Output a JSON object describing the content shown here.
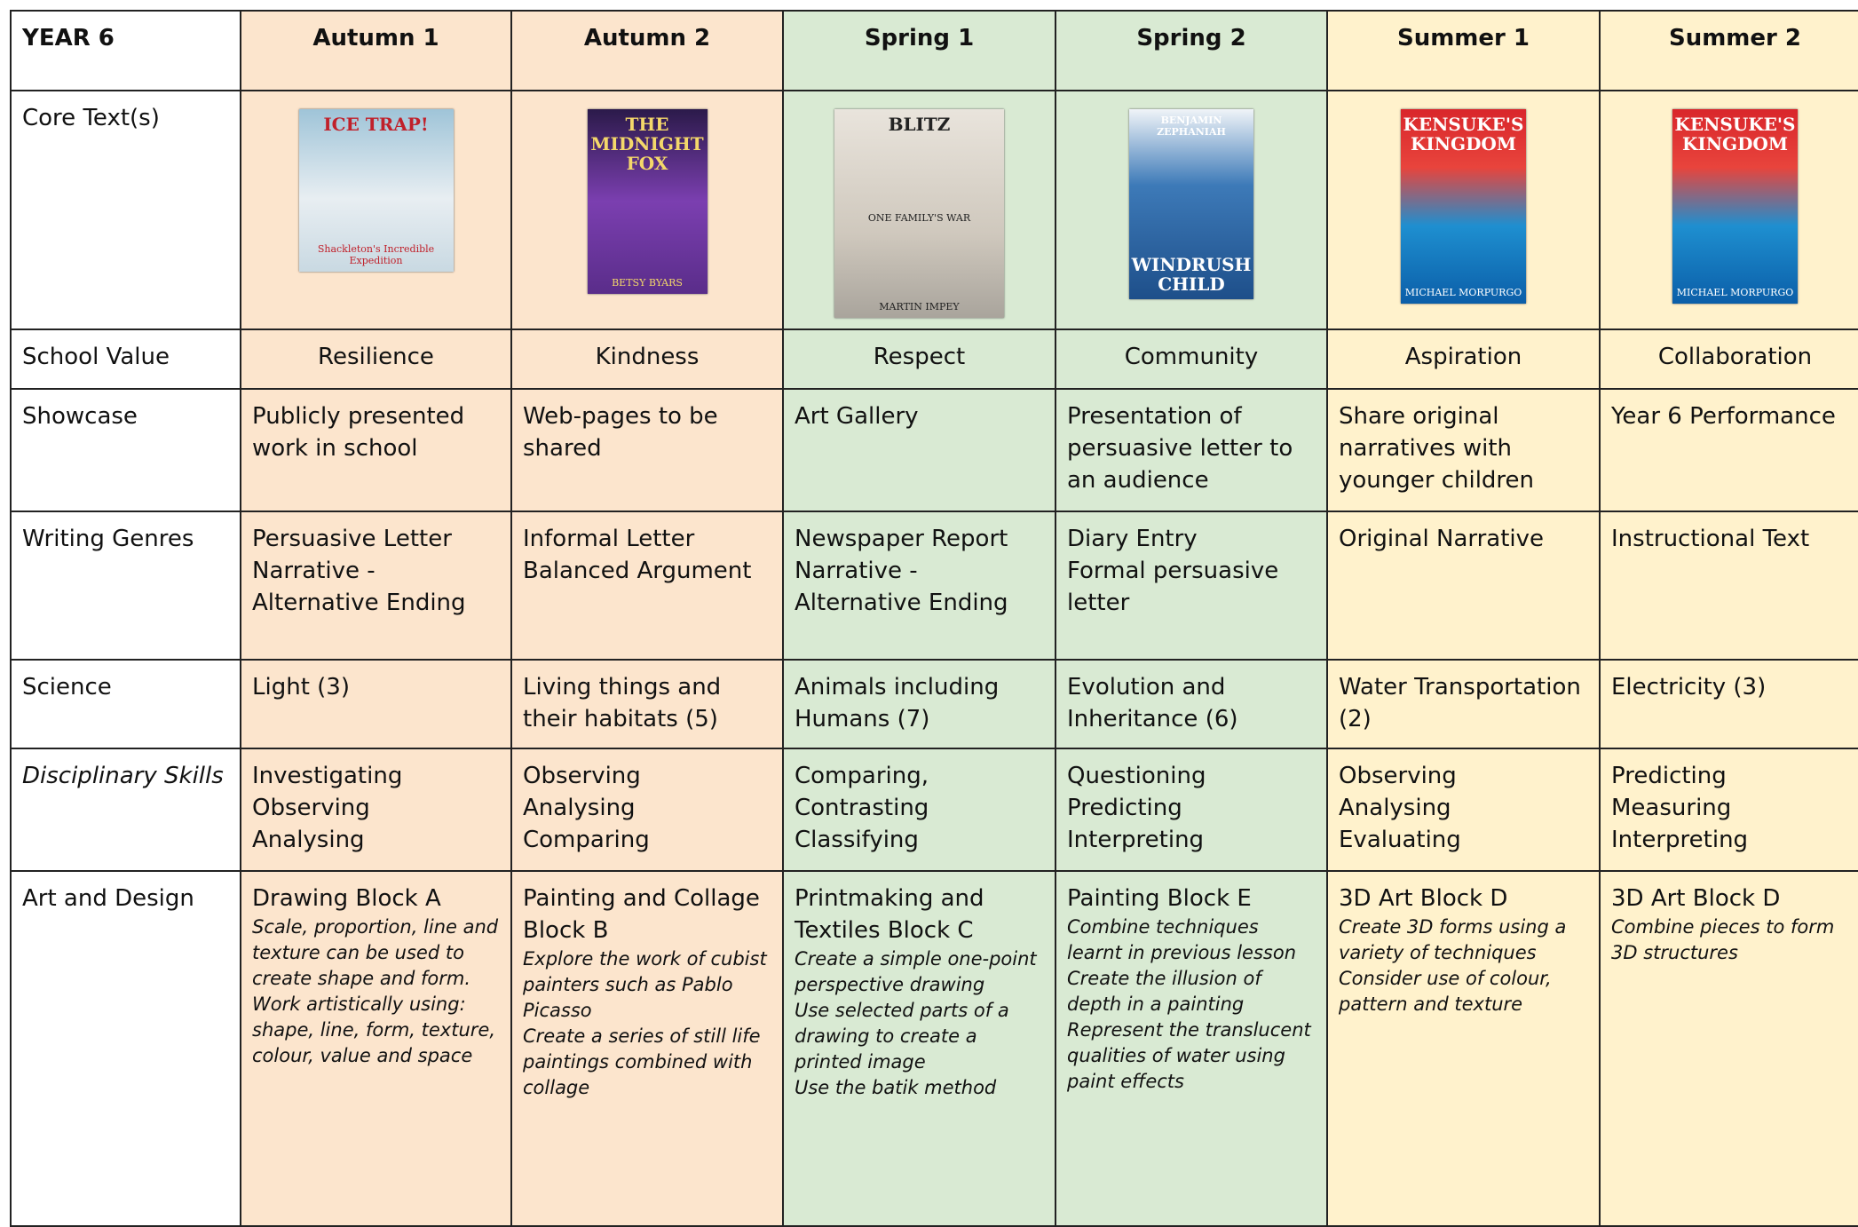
{
  "header": {
    "corner": "YEAR 6",
    "terms": [
      "Autumn 1",
      "Autumn 2",
      "Spring 1",
      "Spring 2",
      "Summer 1",
      "Summer 2"
    ]
  },
  "core_texts": {
    "label": "Core Text(s)",
    "covers": [
      {
        "title": "ICE TRAP!",
        "subtitle": "Shackleton's Incredible Expedition"
      },
      {
        "title": "THE MIDNIGHT FOX",
        "author": "BETSY BYARS"
      },
      {
        "title": "BLITZ",
        "subtitle": "ONE FAMILY'S WAR",
        "author": "MARTIN IMPEY"
      },
      {
        "title": "WINDRUSH CHILD",
        "author": "BENJAMIN ZEPHANIAH"
      },
      {
        "title": "KENSUKE'S KINGDOM",
        "author": "MICHAEL MORPURGO"
      },
      {
        "title": "KENSUKE'S KINGDOM",
        "author": "MICHAEL MORPURGO"
      }
    ]
  },
  "rows": [
    {
      "label": "School Value",
      "centered": true,
      "cells": [
        [
          "Resilience"
        ],
        [
          "Kindness"
        ],
        [
          "Respect"
        ],
        [
          "Community"
        ],
        [
          "Aspiration"
        ],
        [
          "Collaboration"
        ]
      ]
    },
    {
      "label": "Showcase",
      "cells": [
        [
          "Publicly presented work in school"
        ],
        [
          "Web-pages to be shared"
        ],
        [
          "Art Gallery"
        ],
        [
          "Presentation of persuasive letter to an audience"
        ],
        [
          "Share original narratives with younger children"
        ],
        [
          "Year 6 Performance"
        ]
      ]
    },
    {
      "label": "Writing Genres",
      "cells": [
        [
          "Persuasive Letter",
          "Narrative - Alternative Ending"
        ],
        [
          "Informal Letter",
          "Balanced Argument"
        ],
        [
          "Newspaper Report",
          "Narrative - Alternative Ending"
        ],
        [
          "Diary Entry",
          "Formal persuasive letter"
        ],
        [
          "Original Narrative"
        ],
        [
          "Instructional Text"
        ]
      ]
    },
    {
      "label": "Science",
      "cells": [
        [
          "Light (3)"
        ],
        [
          "Living things and their habitats (5)"
        ],
        [
          "Animals including Humans (7)"
        ],
        [
          "Evolution and Inheritance (6)"
        ],
        [
          "Water Transportation (2)"
        ],
        [
          "Electricity (3)"
        ]
      ]
    },
    {
      "label": "Disciplinary Skills",
      "italic": true,
      "cells": [
        [
          "Investigating",
          "Observing",
          "Analysing"
        ],
        [
          "Observing",
          "Analysing",
          "Comparing"
        ],
        [
          "Comparing,",
          "Contrasting",
          "Classifying"
        ],
        [
          "Questioning",
          "Predicting",
          "Interpreting"
        ],
        [
          "Observing",
          "Analysing",
          "Evaluating"
        ],
        [
          "Predicting",
          "Measuring",
          "Interpreting"
        ]
      ]
    }
  ],
  "art": {
    "label": "Art and Design",
    "cells": [
      {
        "title": "Drawing Block A",
        "notes": [
          "Scale, proportion, line and texture can be used to create shape and form.",
          "Work artistically using: shape, line, form, texture, colour, value and space"
        ]
      },
      {
        "title": "Painting and Collage Block B",
        "notes": [
          "Explore the work of cubist painters such as Pablo Picasso",
          "Create a series of still life paintings combined with collage"
        ]
      },
      {
        "title": "Printmaking and Textiles Block C",
        "notes": [
          "Create a simple one-point perspective drawing",
          "Use selected parts of a drawing to create a printed image",
          "Use the batik method"
        ]
      },
      {
        "title": "Painting Block E",
        "notes": [
          "Combine techniques learnt in previous lesson",
          "Create the illusion of depth in a painting",
          "Represent the translucent qualities of water using paint effects"
        ]
      },
      {
        "title": "3D Art Block D",
        "notes": [
          "Create 3D forms using a variety of techniques",
          "Consider use of colour, pattern and texture"
        ]
      },
      {
        "title": "3D Art Block D",
        "notes": [
          "Combine pieces to form 3D structures"
        ]
      }
    ]
  }
}
